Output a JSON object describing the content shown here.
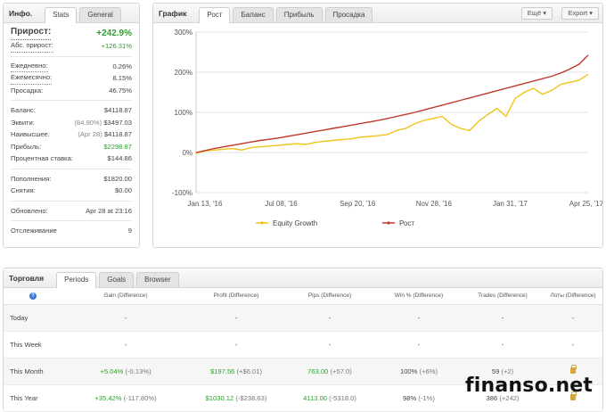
{
  "info": {
    "title": "Инфо.",
    "tabs": [
      "Stats",
      "General"
    ],
    "growth": {
      "label": "Прирост:",
      "value": "+242.9%"
    },
    "abs_growth": {
      "label": "Абс. прирост:",
      "value": "+126.31%"
    },
    "daily": {
      "label": "Ежедневно:",
      "value": "0.26%"
    },
    "monthly": {
      "label": "Ежемесячно:",
      "value": "8.15%"
    },
    "drawdown": {
      "label": "Просадка:",
      "value": "46.75%"
    },
    "balance": {
      "label": "Баланс:",
      "value": "$4118.87"
    },
    "equity": {
      "label": "Эквити:",
      "note": "(84.90%)",
      "value": "$3497.03"
    },
    "highest": {
      "label": "Наивысшее:",
      "note": "(Apr 28)",
      "value": "$4118.87"
    },
    "profit": {
      "label": "Прибыль:",
      "value": "$2298.87"
    },
    "interest": {
      "label": "Процентная ставка:",
      "value": "$144.86"
    },
    "deposits": {
      "label": "Пополнения:",
      "value": "$1820.00"
    },
    "withdrawals": {
      "label": "Снятия:",
      "value": "$0.00"
    },
    "updated": {
      "label": "Обновлено:",
      "value": "Apr 28 at 23:16"
    },
    "tracking": {
      "label": "Отслеживание",
      "value": "9"
    }
  },
  "chart_panel": {
    "title": "График",
    "tabs": [
      "Рост",
      "Баланс",
      "Прибыль",
      "Просадка"
    ],
    "more_button": "Ещё",
    "export_button": "Export"
  },
  "chart_data": {
    "type": "line",
    "ylim": [
      -100,
      300
    ],
    "y_ticks": [
      "300%",
      "200%",
      "100%",
      "0%",
      "-100%"
    ],
    "x_ticks": [
      "Jan 13, '16",
      "Jul 08, '16",
      "Sep 20, '16",
      "Nov 28, '16",
      "Jan 31, '17",
      "Apr 25, '17"
    ],
    "series": [
      {
        "name": "Equity Growth",
        "color": "#f0c419",
        "values": [
          -2,
          4,
          6,
          8,
          10,
          6,
          12,
          14,
          16,
          18,
          20,
          22,
          20,
          25,
          28,
          30,
          32,
          34,
          38,
          40,
          42,
          45,
          55,
          60,
          72,
          80,
          85,
          90,
          70,
          60,
          55,
          78,
          95,
          110,
          90,
          135,
          150,
          160,
          145,
          155,
          170,
          175,
          180,
          195
        ]
      },
      {
        "name": "Рост",
        "color": "#c0392b",
        "values": [
          0,
          5,
          10,
          14,
          18,
          22,
          26,
          30,
          33,
          36,
          40,
          44,
          48,
          52,
          56,
          60,
          64,
          68,
          72,
          76,
          80,
          85,
          90,
          95,
          100,
          106,
          112,
          118,
          124,
          130,
          136,
          142,
          148,
          154,
          160,
          166,
          172,
          178,
          184,
          190,
          198,
          208,
          220,
          243
        ]
      }
    ],
    "legend_position": "bottom"
  },
  "trading": {
    "title": "Торговля",
    "tabs": [
      "Periods",
      "Goals",
      "Browser"
    ],
    "columns": [
      "Gain (Difference)",
      "Profit (Difference)",
      "Pips (Difference)",
      "Win % (Difference)",
      "Trades (Difference)",
      "Лоты (Difference)"
    ],
    "rows": [
      {
        "period": "Today",
        "gain": "-",
        "gain_d": "",
        "profit": "-",
        "profit_d": "",
        "pips": "-",
        "pips_d": "",
        "win": "-",
        "win_d": "",
        "trades": "-",
        "trades_d": "",
        "lots": "-"
      },
      {
        "period": "This Week",
        "gain": "-",
        "gain_d": "",
        "profit": "-",
        "profit_d": "",
        "pips": "-",
        "pips_d": "",
        "win": "-",
        "win_d": "",
        "trades": "-",
        "trades_d": "",
        "lots": "-"
      },
      {
        "period": "This Month",
        "gain": "+5.04%",
        "gain_d": "(-0.13%)",
        "profit": "$197.56",
        "profit_d": "(+$6.01)",
        "pips": "763.00",
        "pips_d": "(+57.0)",
        "win": "100%",
        "win_d": "(+6%)",
        "trades": "59",
        "trades_d": "(+2)",
        "lots": ""
      },
      {
        "period": "This Year",
        "gain": "+35.42%",
        "gain_d": "(-117.80%)",
        "profit": "$1030.12",
        "profit_d": "(-$238.63)",
        "pips": "4113.00",
        "pips_d": "(-5318.0)",
        "win": "98%",
        "win_d": "(-1%)",
        "trades": "386",
        "trades_d": "(+242)",
        "lots": ""
      }
    ]
  },
  "watermark": "finanso.net"
}
